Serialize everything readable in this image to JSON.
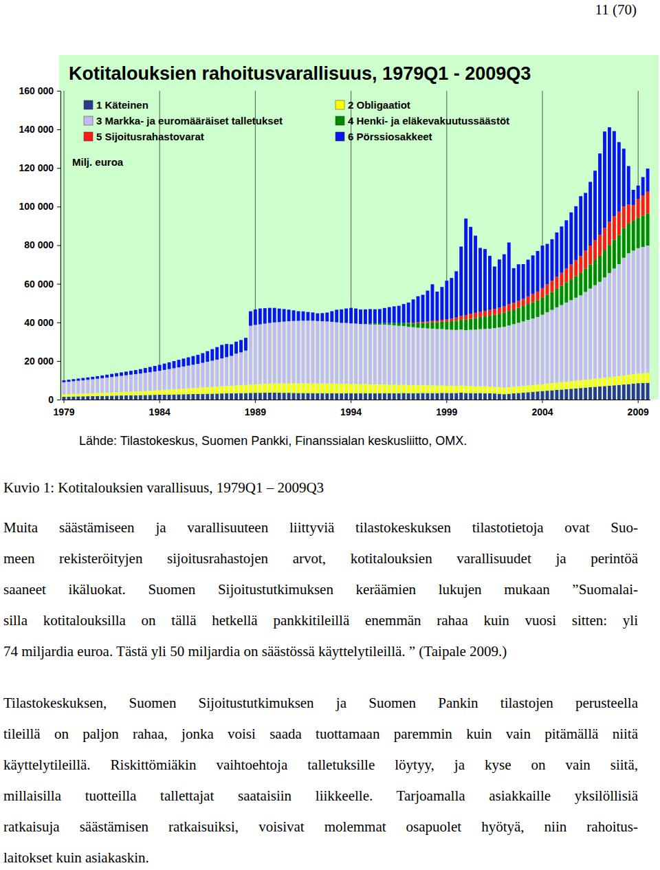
{
  "header": {
    "page_number": "11 (70)"
  },
  "chart_data": {
    "type": "bar",
    "stacked": true,
    "title": "Kotitalouksien rahoitusvarallisuus, 1979Q1 - 2009Q3",
    "y_label": "Milj. euroa",
    "annotations": [
      "Lähde: Tilastokeskus, Suomen Pankki, Finanssialan keskusliitto, OMX."
    ],
    "legend": "top-left",
    "grid": "x",
    "ylim": [
      0,
      160000
    ],
    "yticks": [
      0,
      {
        "value": 20000,
        "label": "20 000"
      },
      {
        "value": 40000,
        "label": "40 000"
      },
      {
        "value": 60000,
        "label": "60 000"
      },
      {
        "value": 80000,
        "label": "80 000"
      },
      {
        "value": 100000,
        "label": "100 000"
      },
      {
        "value": 120000,
        "label": "120 000"
      },
      {
        "value": 140000,
        "label": "140 000"
      },
      {
        "value": 160000,
        "label": "160 000"
      }
    ],
    "categories": [
      "1979",
      null,
      null,
      null,
      null,
      null,
      null,
      null,
      null,
      null,
      null,
      null,
      null,
      null,
      null,
      null,
      null,
      null,
      null,
      null,
      "1984",
      null,
      null,
      null,
      null,
      null,
      null,
      null,
      null,
      null,
      null,
      null,
      null,
      null,
      null,
      null,
      null,
      null,
      null,
      null,
      "1989",
      null,
      null,
      null,
      null,
      null,
      null,
      null,
      null,
      null,
      null,
      null,
      null,
      null,
      null,
      null,
      null,
      null,
      null,
      null,
      "1994",
      null,
      null,
      null,
      null,
      null,
      null,
      null,
      null,
      null,
      null,
      null,
      null,
      null,
      null,
      null,
      null,
      null,
      null,
      null,
      "1999",
      null,
      null,
      null,
      null,
      null,
      null,
      null,
      null,
      null,
      null,
      null,
      null,
      null,
      null,
      null,
      null,
      null,
      null,
      null,
      "2004",
      null,
      null,
      null,
      null,
      null,
      null,
      null,
      null,
      null,
      null,
      null,
      null,
      null,
      null,
      null,
      null,
      null,
      null,
      null,
      "2009",
      null,
      null
    ],
    "series": [
      {
        "name": "1 Käteinen",
        "color": "#2b3990",
        "values": [
          1500,
          1550,
          1600,
          1650,
          1700,
          1750,
          1800,
          1850,
          1900,
          1950,
          2000,
          2050,
          2100,
          2150,
          2200,
          2250,
          2300,
          2350,
          2400,
          2450,
          2500,
          2550,
          2600,
          2650,
          2700,
          2750,
          2800,
          2850,
          2900,
          2950,
          3000,
          3050,
          3100,
          3150,
          3200,
          3250,
          3300,
          3350,
          3400,
          3450,
          3500,
          3500,
          3550,
          3600,
          3600,
          3550,
          3500,
          3500,
          3450,
          3400,
          3400,
          3400,
          3350,
          3300,
          3300,
          3300,
          3300,
          3250,
          3250,
          3300,
          3300,
          3300,
          3300,
          3350,
          3300,
          3300,
          3300,
          3350,
          3300,
          3300,
          3300,
          3400,
          3300,
          3300,
          3350,
          3400,
          3350,
          3350,
          3350,
          3450,
          3400,
          3400,
          3400,
          3600,
          3400,
          3400,
          3350,
          3400,
          3300,
          3250,
          3150,
          3000,
          2800,
          3000,
          3200,
          3400,
          3600,
          3800,
          4000,
          4200,
          4400,
          4600,
          4800,
          5000,
          5200,
          5400,
          5600,
          5800,
          6000,
          6200,
          6400,
          6600,
          6800,
          7000,
          7200,
          7400,
          7600,
          7800,
          8000,
          8300,
          8500,
          8600,
          8700
        ]
      },
      {
        "name": "2 Obligaatiot",
        "color": "#ffff00",
        "values": [
          1200,
          1250,
          1300,
          1350,
          1400,
          1450,
          1500,
          1550,
          1600,
          1650,
          1700,
          1750,
          1800,
          1850,
          1900,
          1950,
          2000,
          2100,
          2200,
          2300,
          2400,
          2500,
          2600,
          2700,
          2800,
          2900,
          3000,
          3100,
          3200,
          3300,
          3400,
          3500,
          3600,
          3700,
          3800,
          3900,
          4000,
          4100,
          4200,
          4300,
          4400,
          4500,
          4600,
          4700,
          4800,
          4800,
          4900,
          4900,
          5000,
          5000,
          5000,
          5000,
          5000,
          5000,
          5000,
          5000,
          5000,
          5000,
          4900,
          4900,
          4800,
          4800,
          4700,
          4700,
          4600,
          4600,
          4500,
          4500,
          4400,
          4400,
          4300,
          4300,
          4200,
          4200,
          4100,
          4100,
          4000,
          4000,
          3900,
          3900,
          3800,
          3800,
          3700,
          3700,
          3600,
          3600,
          3500,
          3500,
          3500,
          3500,
          3400,
          3400,
          3400,
          3400,
          3400,
          3400,
          3400,
          3500,
          3500,
          3600,
          3600,
          3700,
          3700,
          3800,
          3800,
          3900,
          3900,
          4000,
          4000,
          4100,
          4100,
          4200,
          4200,
          4300,
          4400,
          4500,
          4600,
          4700,
          4800,
          4900,
          5000,
          5000,
          5100
        ]
      },
      {
        "name": "3 Markka- ja euromääräiset talletukset",
        "color": "#c9b7f3",
        "values": [
          6300,
          6450,
          6600,
          6750,
          6900,
          7050,
          7200,
          7400,
          7600,
          7800,
          8000,
          8200,
          8400,
          8600,
          8800,
          9000,
          9200,
          9400,
          9600,
          9800,
          10000,
          10300,
          10600,
          10900,
          11200,
          11500,
          11800,
          12100,
          12400,
          12800,
          13200,
          13600,
          14000,
          14500,
          15000,
          15500,
          16500,
          17000,
          17800,
          30500,
          30800,
          31000,
          31200,
          31400,
          31600,
          31800,
          32000,
          32200,
          32300,
          32400,
          32500,
          32500,
          32500,
          32400,
          32300,
          32200,
          32000,
          31800,
          31600,
          31500,
          31400,
          31300,
          31200,
          31100,
          31000,
          31000,
          31000,
          31000,
          31000,
          30800,
          30600,
          30400,
          30200,
          30000,
          29800,
          29600,
          29500,
          29400,
          29300,
          29200,
          29100,
          29000,
          29000,
          29000,
          29000,
          29200,
          29400,
          29600,
          29800,
          30000,
          30500,
          31000,
          31500,
          32000,
          32500,
          33000,
          33500,
          34000,
          34500,
          35000,
          36000,
          37000,
          38000,
          39000,
          40000,
          41000,
          42000,
          43000,
          44000,
          45500,
          47000,
          48500,
          50000,
          52000,
          54000,
          56000,
          58000,
          61000,
          63000,
          64000,
          65000,
          65500,
          66000
        ]
      },
      {
        "name": "4 Henki- ja eläkevakuutussäästöt",
        "color": "#008a00",
        "values": [
          0,
          0,
          0,
          0,
          0,
          0,
          0,
          0,
          0,
          0,
          0,
          0,
          0,
          0,
          0,
          0,
          0,
          0,
          0,
          0,
          0,
          0,
          0,
          0,
          0,
          0,
          0,
          0,
          0,
          0,
          0,
          0,
          0,
          0,
          0,
          0,
          0,
          0,
          0,
          0,
          0,
          0,
          0,
          0,
          0,
          0,
          0,
          0,
          0,
          0,
          0,
          0,
          0,
          0,
          0,
          0,
          0,
          0,
          0,
          0,
          0,
          0,
          0,
          0,
          500,
          600,
          700,
          800,
          1000,
          1200,
          1400,
          1600,
          1800,
          2000,
          2300,
          2600,
          2900,
          3200,
          3500,
          3800,
          4100,
          4400,
          4700,
          5000,
          5400,
          5700,
          6000,
          6300,
          6500,
          6700,
          6900,
          7100,
          7300,
          7500,
          7600,
          7800,
          8000,
          8200,
          8400,
          8600,
          8800,
          9000,
          9300,
          9600,
          10000,
          10400,
          10800,
          11200,
          11600,
          12000,
          12500,
          13000,
          13500,
          14000,
          14500,
          15000,
          15200,
          15300,
          15400,
          15500,
          15800,
          16200,
          16600
        ]
      },
      {
        "name": "5 Sijoitusrahastovarat",
        "color": "#ff1a1a",
        "values": [
          0,
          0,
          0,
          0,
          0,
          0,
          0,
          0,
          0,
          0,
          0,
          0,
          0,
          0,
          0,
          0,
          0,
          0,
          0,
          0,
          0,
          0,
          0,
          0,
          0,
          0,
          0,
          0,
          0,
          0,
          0,
          0,
          0,
          0,
          0,
          0,
          0,
          0,
          0,
          0,
          0,
          0,
          0,
          0,
          0,
          0,
          0,
          0,
          0,
          0,
          0,
          0,
          0,
          0,
          0,
          0,
          0,
          0,
          0,
          0,
          0,
          0,
          0,
          0,
          0,
          0,
          0,
          0,
          0,
          0,
          0,
          0,
          300,
          400,
          500,
          600,
          700,
          800,
          900,
          1000,
          1200,
          1400,
          1700,
          2000,
          2400,
          2600,
          2700,
          2800,
          2900,
          3000,
          3000,
          3100,
          3300,
          3500,
          3400,
          3500,
          3700,
          4000,
          4300,
          4600,
          5000,
          5400,
          5800,
          6200,
          6700,
          7200,
          7700,
          8200,
          8800,
          9300,
          9800,
          10300,
          11000,
          11600,
          12000,
          12200,
          12000,
          11200,
          9800,
          8000,
          9600,
          10500,
          11300
        ]
      },
      {
        "name": "6 Pörssiosakkeet",
        "color": "#0a14f0",
        "values": [
          1000,
          1050,
          1100,
          1150,
          1200,
          1250,
          1300,
          1350,
          1400,
          1500,
          1600,
          1700,
          1800,
          1900,
          2000,
          2100,
          2300,
          2500,
          2700,
          2900,
          3100,
          3300,
          3500,
          3700,
          3900,
          4100,
          4300,
          4500,
          4700,
          5000,
          5500,
          6000,
          6500,
          7000,
          6800,
          6000,
          6200,
          6400,
          6600,
          7500,
          8000,
          8200,
          8000,
          7800,
          7500,
          7000,
          6500,
          6000,
          5500,
          5000,
          4800,
          4500,
          4300,
          4000,
          4200,
          4600,
          5500,
          6500,
          7000,
          7500,
          8000,
          7800,
          7500,
          7600,
          7500,
          7300,
          7400,
          7800,
          8200,
          8600,
          9000,
          9800,
          10500,
          12000,
          13500,
          14000,
          16000,
          19000,
          15000,
          17000,
          20000,
          21000,
          24000,
          36000,
          50000,
          45000,
          40000,
          33000,
          32000,
          28000,
          22000,
          25000,
          27000,
          32000,
          18000,
          19000,
          18000,
          19000,
          20000,
          21000,
          22000,
          21000,
          21500,
          23000,
          24000,
          25000,
          27000,
          28000,
          31000,
          30000,
          33000,
          36000,
          42000,
          50000,
          49000,
          44000,
          36000,
          30000,
          20000,
          8000,
          7000,
          9500,
          12000
        ]
      }
    ]
  },
  "caption": "Kuvio 1: Kotitalouksien varallisuus, 1979Q1 – 2009Q3",
  "paragraphs": [
    [
      "Muita säästämiseen ja varallisuuteen liittyviä tilastokeskuksen tilastotietoja ovat Suo-",
      "meen rekisteröityjen sijoitusrahastojen arvot, kotitalouksien varallisuudet ja perintöä",
      "saaneet ikäluokat. Suomen Sijoitustutkimuksen keräämien lukujen mukaan ”Suomalai-",
      "silla kotitalouksilla on tällä hetkellä pankkitileillä enemmän rahaa kuin vuosi sitten: yli",
      "74 miljardia euroa. Tästä yli 50 miljardia on säästössä käyttelytileillä. ” (Taipale 2009.)"
    ],
    [
      "Tilastokeskuksen, Suomen Sijoitustutkimuksen ja Suomen Pankin tilastojen perusteella",
      "tileillä on paljon rahaa, jonka voisi saada tuottamaan paremmin kuin vain pitämällä niitä",
      "käyttelytileillä. Riskittömiäkin vaihtoehtoja talletuksille löytyy, ja kyse on vain siitä,",
      "millaisilla tuotteilla tallettajat saataisiin liikkeelle. Tarjoamalla asiakkaille yksilöllisiä",
      "ratkaisuja säästämisen ratkaisuiksi, voisivat molemmat osapuolet hyötyä, niin rahoitus-",
      "laitokset kuin asiakaskin."
    ]
  ]
}
